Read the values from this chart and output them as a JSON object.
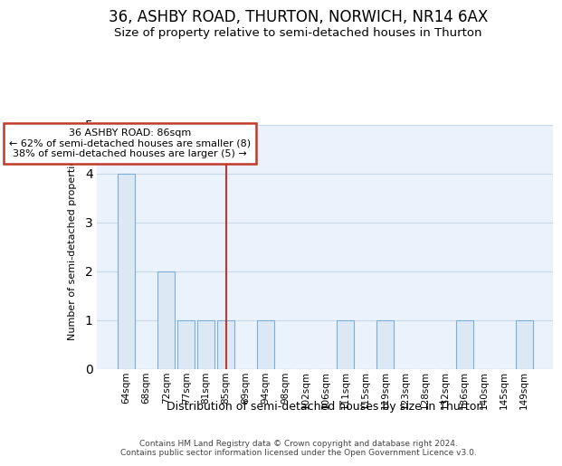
{
  "title": "36, ASHBY ROAD, THURTON, NORWICH, NR14 6AX",
  "subtitle": "Size of property relative to semi-detached houses in Thurton",
  "xlabel": "Distribution of semi-detached houses by size in Thurton",
  "ylabel": "Number of semi-detached properties",
  "footer1": "Contains HM Land Registry data © Crown copyright and database right 2024.",
  "footer2": "Contains public sector information licensed under the Open Government Licence v3.0.",
  "categories": [
    "64sqm",
    "68sqm",
    "72sqm",
    "77sqm",
    "81sqm",
    "85sqm",
    "89sqm",
    "94sqm",
    "98sqm",
    "102sqm",
    "106sqm",
    "111sqm",
    "115sqm",
    "119sqm",
    "123sqm",
    "128sqm",
    "132sqm",
    "136sqm",
    "140sqm",
    "145sqm",
    "149sqm"
  ],
  "values": [
    4,
    0,
    2,
    1,
    1,
    1,
    0,
    1,
    0,
    0,
    0,
    1,
    0,
    1,
    0,
    0,
    0,
    1,
    0,
    0,
    1
  ],
  "bar_color": "#dce9f5",
  "bar_edge_color": "#7bafd4",
  "highlight_index": 5,
  "highlight_line_color": "#c0392b",
  "annotation_title": "36 ASHBY ROAD: 86sqm",
  "annotation_left": "← 62% of semi-detached houses are smaller (8)",
  "annotation_right": "38% of semi-detached houses are larger (5) →",
  "annotation_box_facecolor": "#ffffff",
  "annotation_box_edge_color": "#c0392b",
  "ylim": [
    0,
    5
  ],
  "yticks": [
    0,
    1,
    2,
    3,
    4,
    5
  ],
  "ax_facecolor": "#eaf2fb",
  "fig_facecolor": "#ffffff",
  "grid_color": "#c8d8e8",
  "title_fontsize": 12,
  "subtitle_fontsize": 9.5
}
